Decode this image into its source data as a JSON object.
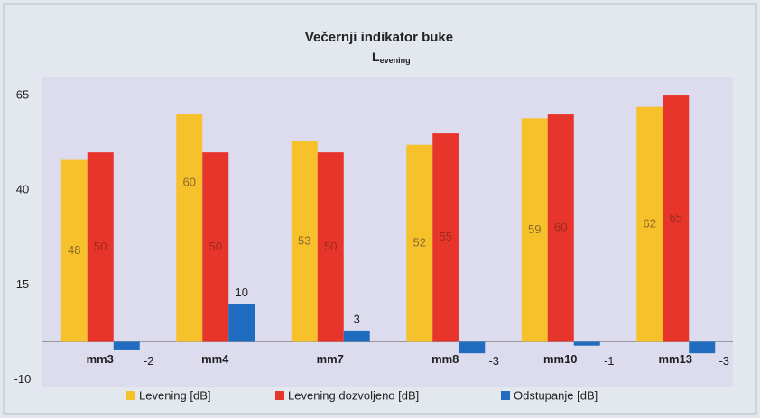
{
  "chart_data": {
    "type": "bar",
    "title": "Večernji indikator buke",
    "subtitle": "L",
    "subtitle_subscript": "evening",
    "categories": [
      "mm3",
      "mm4",
      "mm7",
      "mm8",
      "mm10",
      "mm13"
    ],
    "series": [
      {
        "name": "Levening [dB]",
        "color": "#f6c12a",
        "values": [
          48,
          60,
          53,
          52,
          59,
          62
        ]
      },
      {
        "name": "Levening dozvoljeno [dB]",
        "color": "#e8352b",
        "values": [
          50,
          50,
          50,
          55,
          60,
          65
        ]
      },
      {
        "name": "Odstupanje [dB]",
        "color": "#1f6cc0",
        "values": [
          -2,
          10,
          3,
          -3,
          -1,
          -3
        ]
      }
    ],
    "ylim": [
      -12,
      70
    ],
    "yticks": [
      -10,
      15,
      40,
      65
    ],
    "grid": false,
    "legend": "bottom"
  }
}
